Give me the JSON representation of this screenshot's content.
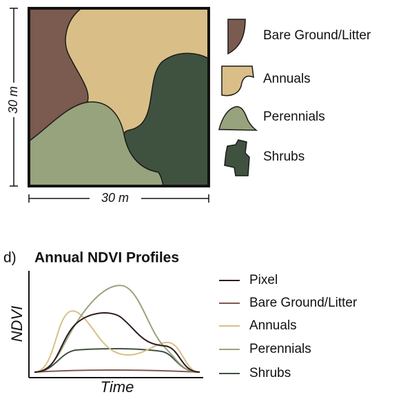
{
  "map": {
    "left_label": "30 m",
    "bottom_label": "30 m",
    "legend": [
      "Bare Ground/Litter",
      "Annuals",
      "Perennials",
      "Shrubs"
    ]
  },
  "panel_label": "d)",
  "profiles": {
    "title": "Annual NDVI Profiles",
    "y_label": "NDVI",
    "x_label": "Time",
    "legend": [
      "Pixel",
      "Bare Ground/Litter",
      "Annuals",
      "Perennials",
      "Shrubs"
    ]
  }
}
